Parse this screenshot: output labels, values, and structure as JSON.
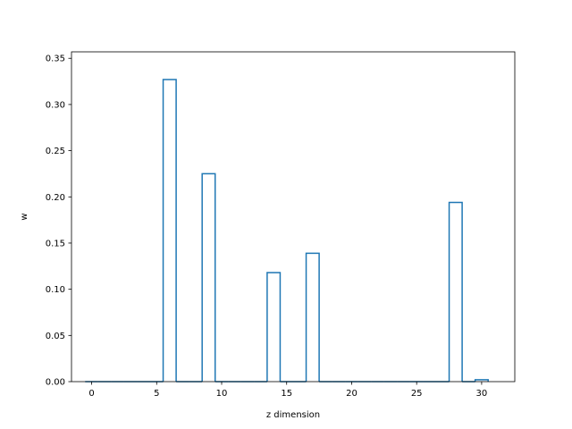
{
  "chart_data": {
    "type": "bar",
    "style": "step-outline-histogram",
    "title": "",
    "xlabel": "z dimension",
    "ylabel": "w",
    "xlim": [
      -1.55,
      32.55
    ],
    "ylim": [
      0.0,
      0.357
    ],
    "x_ticks": [
      0,
      5,
      10,
      15,
      20,
      25,
      30
    ],
    "x_tick_labels": [
      "0",
      "5",
      "10",
      "15",
      "20",
      "25",
      "30"
    ],
    "y_ticks": [
      0.0,
      0.05,
      0.1,
      0.15,
      0.2,
      0.25,
      0.3,
      0.35
    ],
    "y_tick_labels": [
      "0.00",
      "0.05",
      "0.10",
      "0.15",
      "0.20",
      "0.25",
      "0.30",
      "0.35"
    ],
    "x": [
      0,
      1,
      2,
      3,
      4,
      5,
      6,
      7,
      8,
      9,
      10,
      11,
      12,
      13,
      14,
      15,
      16,
      17,
      18,
      19,
      20,
      21,
      22,
      23,
      24,
      25,
      26,
      27,
      28,
      29,
      30
    ],
    "values": [
      0,
      0,
      0,
      0,
      0,
      0,
      0.327,
      0,
      0,
      0.225,
      0,
      0,
      0,
      0,
      0.118,
      0,
      0,
      0.139,
      0,
      0,
      0,
      0,
      0,
      0,
      0,
      0,
      0,
      0,
      0.194,
      0,
      0.002
    ],
    "bin_width": 1,
    "grid": false,
    "line_color": "#1f77b4"
  }
}
